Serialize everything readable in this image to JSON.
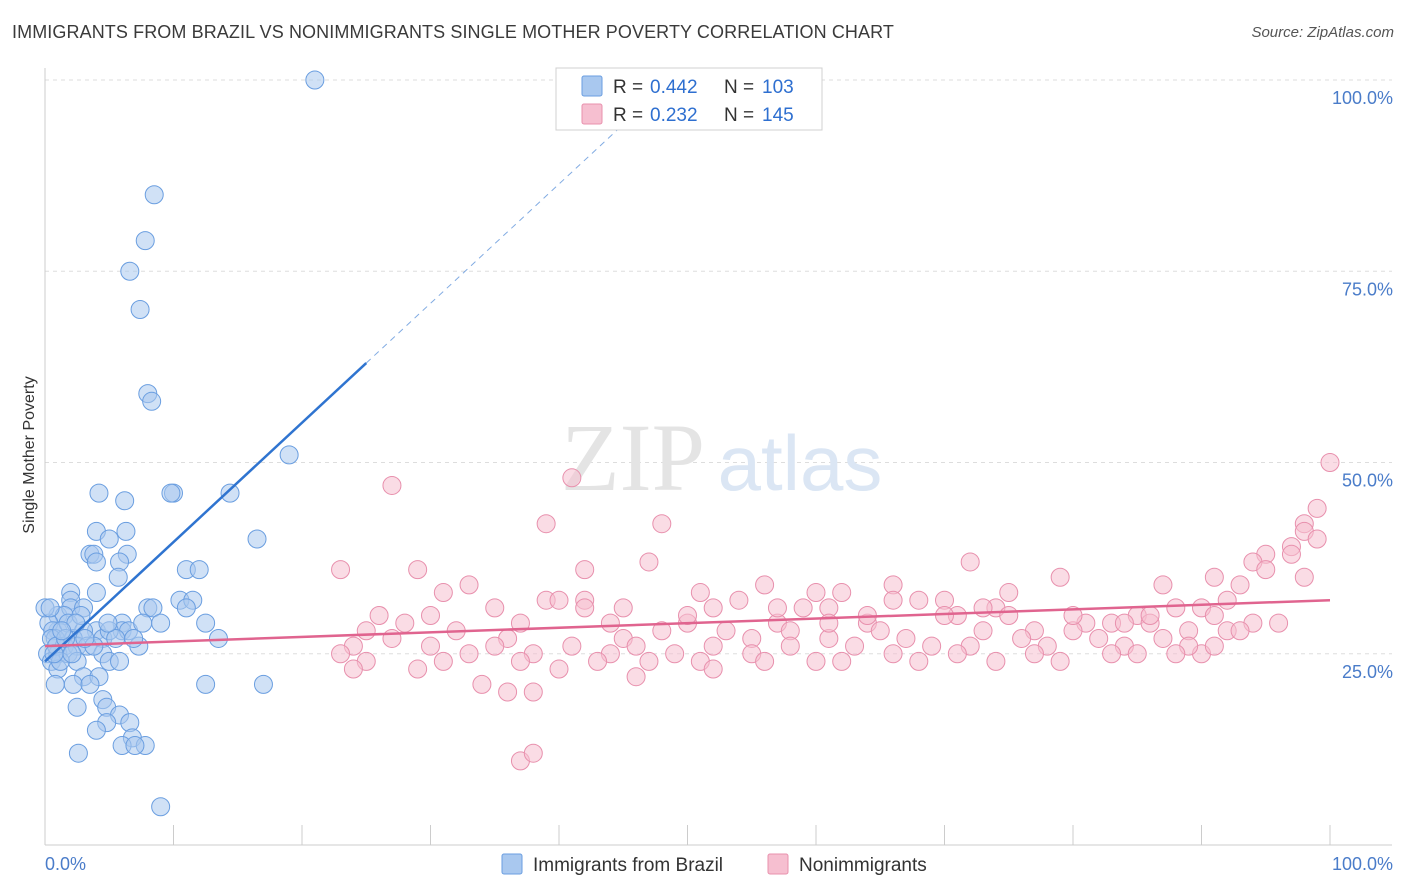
{
  "title": "IMMIGRANTS FROM BRAZIL VS NONIMMIGRANTS SINGLE MOTHER POVERTY CORRELATION CHART",
  "source": "Source: ZipAtlas.com",
  "watermark": {
    "zip": "ZIP",
    "atlas": "atlas"
  },
  "colors": {
    "blue_fill": "#a9c8ef",
    "blue_stroke": "#6a9ee0",
    "blue_line": "#2f74d0",
    "pink_fill": "#f6bfd0",
    "pink_stroke": "#e890ad",
    "pink_line": "#e0648f",
    "tick": "#4a7cc9",
    "grid": "#dddddd"
  },
  "legend": {
    "r_label": "R =",
    "n_label": "N =",
    "series": [
      {
        "r": "0.442",
        "n": "103"
      },
      {
        "r": "0.232",
        "n": "145"
      }
    ]
  },
  "bottom_legend": [
    "Immigrants from Brazil",
    "Nonimmigrants"
  ],
  "chart_data": {
    "type": "scatter",
    "ylabel": "Single Mother Poverty",
    "xlim": [
      0,
      100
    ],
    "ylim": [
      0,
      100
    ],
    "x_tick_labels": [
      "0.0%",
      "100.0%"
    ],
    "y_ticks": [
      {
        "value": 25,
        "label": "25.0%"
      },
      {
        "value": 50,
        "label": "50.0%"
      },
      {
        "value": 75,
        "label": "75.0%"
      },
      {
        "value": 100,
        "label": "100.0%"
      }
    ],
    "series": [
      {
        "name": "Immigrants from Brazil",
        "trend": {
          "x0": 0,
          "y0": 24,
          "x1": 25,
          "y1": 63,
          "dash_to_x": 46
        },
        "points": [
          [
            21,
            100
          ],
          [
            8.5,
            85
          ],
          [
            7.8,
            79
          ],
          [
            6.6,
            75
          ],
          [
            7.4,
            70
          ],
          [
            8,
            59
          ],
          [
            8.3,
            58
          ],
          [
            19,
            51
          ],
          [
            4.2,
            46
          ],
          [
            10,
            46
          ],
          [
            9.8,
            46
          ],
          [
            14.4,
            46
          ],
          [
            6.2,
            45
          ],
          [
            4,
            41
          ],
          [
            6.3,
            41
          ],
          [
            5,
            40
          ],
          [
            16.5,
            40
          ],
          [
            3.5,
            38
          ],
          [
            3.8,
            38
          ],
          [
            6.4,
            38
          ],
          [
            4,
            37
          ],
          [
            5.8,
            37
          ],
          [
            11,
            36
          ],
          [
            12,
            36
          ],
          [
            5.7,
            35
          ],
          [
            2,
            33
          ],
          [
            4,
            33
          ],
          [
            2,
            32
          ],
          [
            8,
            31
          ],
          [
            10.5,
            32
          ],
          [
            11.5,
            32
          ],
          [
            1,
            30
          ],
          [
            2,
            31
          ],
          [
            3,
            31
          ],
          [
            8.4,
            31
          ],
          [
            11,
            31
          ],
          [
            1.5,
            30
          ],
          [
            6,
            29
          ],
          [
            9,
            29
          ],
          [
            1,
            28
          ],
          [
            4,
            28
          ],
          [
            12.5,
            29
          ],
          [
            0.3,
            29
          ],
          [
            0.6,
            28
          ],
          [
            1.8,
            29
          ],
          [
            3,
            28
          ],
          [
            6,
            28
          ],
          [
            0.8,
            27
          ],
          [
            2.2,
            27
          ],
          [
            4.5,
            27
          ],
          [
            5,
            28
          ],
          [
            6.5,
            28
          ],
          [
            0.5,
            27
          ],
          [
            1.5,
            26
          ],
          [
            2.5,
            26
          ],
          [
            3.3,
            26
          ],
          [
            4.5,
            25
          ],
          [
            7.3,
            26
          ],
          [
            13.5,
            27
          ],
          [
            0.2,
            25
          ],
          [
            0.5,
            24
          ],
          [
            1,
            25
          ],
          [
            1.8,
            25
          ],
          [
            2.5,
            24
          ],
          [
            5,
            24
          ],
          [
            5.8,
            24
          ],
          [
            1,
            23
          ],
          [
            3,
            22
          ],
          [
            4.2,
            22
          ],
          [
            12.5,
            21
          ],
          [
            17,
            21
          ],
          [
            2.2,
            21
          ],
          [
            3.5,
            21
          ],
          [
            0.8,
            21
          ],
          [
            4.5,
            19
          ],
          [
            4.8,
            18
          ],
          [
            2.5,
            18
          ],
          [
            5.8,
            17
          ],
          [
            4.8,
            16
          ],
          [
            6.6,
            16
          ],
          [
            4,
            15
          ],
          [
            6.8,
            14
          ],
          [
            7.8,
            13
          ],
          [
            6,
            13
          ],
          [
            2.6,
            12
          ],
          [
            7,
            13
          ],
          [
            9,
            5
          ],
          [
            0,
            31
          ],
          [
            0.4,
            31
          ],
          [
            0.9,
            26
          ],
          [
            1.2,
            24
          ],
          [
            2.8,
            30
          ],
          [
            5.5,
            27
          ],
          [
            6.9,
            27
          ],
          [
            3.8,
            26
          ],
          [
            1.6,
            27
          ],
          [
            3.1,
            27
          ],
          [
            4.9,
            29
          ],
          [
            0.7,
            25
          ],
          [
            2.1,
            25
          ],
          [
            7.6,
            29
          ],
          [
            2.4,
            29
          ],
          [
            1.3,
            28
          ]
        ]
      },
      {
        "name": "Nonimmigrants",
        "trend": {
          "x0": 0,
          "y0": 26,
          "x1": 100,
          "y1": 32
        },
        "points": [
          [
            100,
            50
          ],
          [
            41,
            48
          ],
          [
            27,
            47
          ],
          [
            99,
            44
          ],
          [
            39,
            42
          ],
          [
            48,
            42
          ],
          [
            98,
            42
          ],
          [
            97,
            39
          ],
          [
            95,
            38
          ],
          [
            94,
            37
          ],
          [
            72,
            37
          ],
          [
            47,
            37
          ],
          [
            29,
            36
          ],
          [
            42,
            36
          ],
          [
            23,
            36
          ],
          [
            79,
            35
          ],
          [
            91,
            35
          ],
          [
            87,
            34
          ],
          [
            98,
            35
          ],
          [
            33,
            34
          ],
          [
            56,
            34
          ],
          [
            66,
            34
          ],
          [
            62,
            33
          ],
          [
            75,
            33
          ],
          [
            31,
            33
          ],
          [
            42,
            32
          ],
          [
            51,
            33
          ],
          [
            60,
            33
          ],
          [
            92,
            32
          ],
          [
            39,
            32
          ],
          [
            54,
            32
          ],
          [
            40,
            32
          ],
          [
            68,
            32
          ],
          [
            70,
            32
          ],
          [
            35,
            31
          ],
          [
            52,
            31
          ],
          [
            59,
            31
          ],
          [
            45,
            31
          ],
          [
            71,
            30
          ],
          [
            61,
            31
          ],
          [
            74,
            31
          ],
          [
            88,
            31
          ],
          [
            90,
            31
          ],
          [
            85,
            30
          ],
          [
            30,
            30
          ],
          [
            26,
            30
          ],
          [
            28,
            29
          ],
          [
            37,
            29
          ],
          [
            44,
            29
          ],
          [
            50,
            29
          ],
          [
            57,
            29
          ],
          [
            64,
            29
          ],
          [
            81,
            29
          ],
          [
            83,
            29
          ],
          [
            86,
            29
          ],
          [
            94,
            29
          ],
          [
            25,
            28
          ],
          [
            32,
            28
          ],
          [
            48,
            28
          ],
          [
            53,
            28
          ],
          [
            58,
            28
          ],
          [
            65,
            28
          ],
          [
            73,
            28
          ],
          [
            77,
            28
          ],
          [
            80,
            28
          ],
          [
            84,
            29
          ],
          [
            89,
            28
          ],
          [
            92,
            28
          ],
          [
            96,
            29
          ],
          [
            27,
            27
          ],
          [
            36,
            27
          ],
          [
            45,
            27
          ],
          [
            55,
            27
          ],
          [
            61,
            27
          ],
          [
            67,
            27
          ],
          [
            76,
            27
          ],
          [
            82,
            27
          ],
          [
            87,
            27
          ],
          [
            93,
            28
          ],
          [
            24,
            26
          ],
          [
            30,
            26
          ],
          [
            35,
            26
          ],
          [
            41,
            26
          ],
          [
            46,
            26
          ],
          [
            52,
            26
          ],
          [
            58,
            26
          ],
          [
            63,
            26
          ],
          [
            69,
            26
          ],
          [
            72,
            26
          ],
          [
            78,
            26
          ],
          [
            84,
            26
          ],
          [
            90,
            25
          ],
          [
            23,
            25
          ],
          [
            33,
            25
          ],
          [
            38,
            25
          ],
          [
            44,
            25
          ],
          [
            49,
            25
          ],
          [
            55,
            25
          ],
          [
            60,
            24
          ],
          [
            66,
            25
          ],
          [
            71,
            25
          ],
          [
            77,
            25
          ],
          [
            83,
            25
          ],
          [
            89,
            26
          ],
          [
            25,
            24
          ],
          [
            31,
            24
          ],
          [
            37,
            24
          ],
          [
            43,
            24
          ],
          [
            47,
            24
          ],
          [
            51,
            24
          ],
          [
            56,
            24
          ],
          [
            62,
            24
          ],
          [
            68,
            24
          ],
          [
            74,
            24
          ],
          [
            79,
            24
          ],
          [
            85,
            25
          ],
          [
            88,
            25
          ],
          [
            91,
            26
          ],
          [
            24,
            23
          ],
          [
            29,
            23
          ],
          [
            40,
            23
          ],
          [
            46,
            22
          ],
          [
            52,
            23
          ],
          [
            34,
            21
          ],
          [
            36,
            20
          ],
          [
            38,
            20
          ],
          [
            37,
            11
          ],
          [
            38,
            12
          ],
          [
            97,
            38
          ],
          [
            95,
            36
          ],
          [
            93,
            34
          ],
          [
            98,
            41
          ],
          [
            99,
            40
          ],
          [
            42,
            31
          ],
          [
            50,
            30
          ],
          [
            64,
            30
          ],
          [
            70,
            30
          ],
          [
            75,
            30
          ],
          [
            80,
            30
          ],
          [
            86,
            30
          ],
          [
            91,
            30
          ],
          [
            57,
            31
          ],
          [
            61,
            29
          ],
          [
            66,
            32
          ],
          [
            73,
            31
          ]
        ]
      }
    ]
  }
}
